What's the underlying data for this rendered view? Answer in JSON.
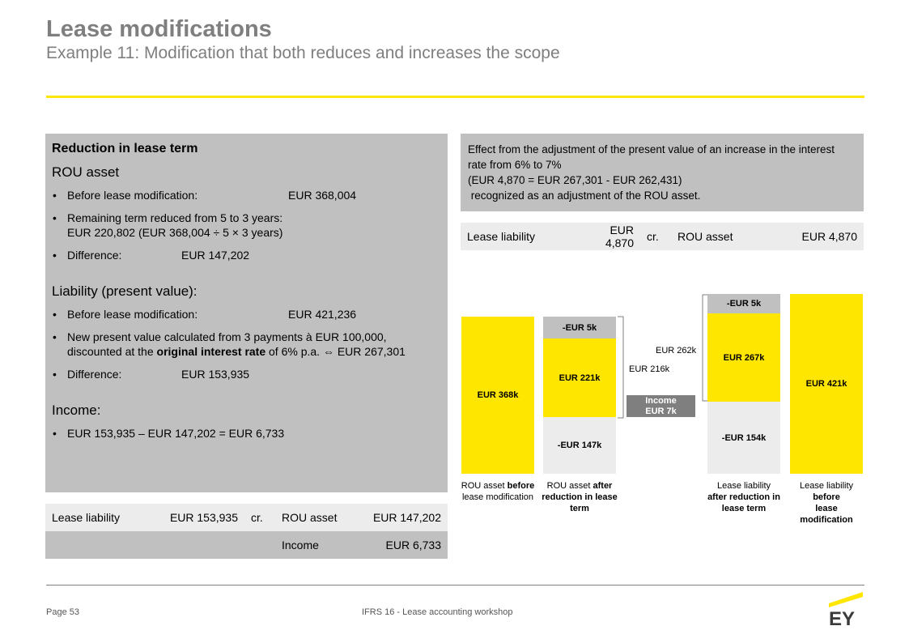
{
  "header": {
    "title": "Lease modifications",
    "subtitle": "Example 11: Modification that both reduces and increases the scope"
  },
  "left_panel": {
    "heading": "Reduction in lease term",
    "rou_heading": "ROU asset",
    "rou_before_label": "Before lease modification:",
    "rou_before_value": "EUR 368,004",
    "rou_remaining_line1": "Remaining term reduced from 5 to 3 years:",
    "rou_remaining_line2": "EUR 220,802 (EUR 368,004 ÷ 5 × 3 years)",
    "rou_diff_label": "Difference:",
    "rou_diff_value": "EUR 147,202",
    "liab_heading": "Liability (present value):",
    "liab_before_label": "Before lease modification:",
    "liab_before_value": "EUR 421,236",
    "liab_new_line1": "New present value calculated from 3 payments à EUR 100,000,",
    "liab_new_line2a": "discounted at the ",
    "liab_new_line2b": "original interest rate",
    "liab_new_line2c": " of 6% p.a. ⇔ EUR 267,301",
    "liab_diff_label": "Difference:",
    "liab_diff_value": "EUR 153,935",
    "income_heading": "Income:",
    "income_calc": "EUR 153,935 – EUR 147,202 = EUR 6,733"
  },
  "left_journal": {
    "row1": {
      "debit": "Lease liability",
      "debit_amount": "EUR 153,935",
      "cr": "cr.",
      "credit": "ROU asset",
      "credit_amount": "EUR 147,202"
    },
    "row2": {
      "credit": "Income",
      "credit_amount": "EUR 6,733"
    }
  },
  "right_panel": {
    "line1": "Effect from the adjustment of the present value of an increase in the interest rate from 6% to 7%",
    "line2": "(EUR 4,870 = EUR 267,301 - EUR 262,431)",
    "line3": " recognized as an adjustment of the ROU asset."
  },
  "right_journal": {
    "debit": "Lease liability",
    "debit_amount": "EUR 4,870",
    "cr": "cr.",
    "credit": "ROU asset",
    "credit_amount": "EUR 4,870"
  },
  "waterfall": {
    "bar1_label": "EUR 368k",
    "bar2_top": "-EUR 5k",
    "bar2_mid": "EUR 221k",
    "bar2_bottom": "-EUR 147k",
    "income_line1": "Income",
    "income_line2": "EUR 7k",
    "note_262": "EUR 262k",
    "note_216": "EUR 216k",
    "bar4_top": "-EUR 5k",
    "bar4_mid": "EUR 267k",
    "bar4_bottom": "-EUR 154k",
    "bar5_label": "EUR 421k",
    "cap1_a": "ROU asset ",
    "cap1_b": "before",
    "cap1_c": "lease modification",
    "cap2_a": "ROU asset ",
    "cap2_b": "after reduction",
    "cap2_c": " in lease term",
    "cap4_a": "Lease liability",
    "cap4_b": "after reduction",
    "cap4_c": " in lease term",
    "cap5_a": "Lease liability",
    "cap5_b": "before",
    "cap5_c": "lease modification"
  },
  "footer": {
    "page": "Page 53",
    "center": "IFRS 16 - Lease accounting workshop",
    "logo_text": "EY"
  },
  "colors": {
    "accent": "#ffe600",
    "grey": "#c0c0c0",
    "light_grey": "#ececec",
    "dark_grey": "#7f7f7f",
    "title_grey": "#7f7f7f"
  }
}
